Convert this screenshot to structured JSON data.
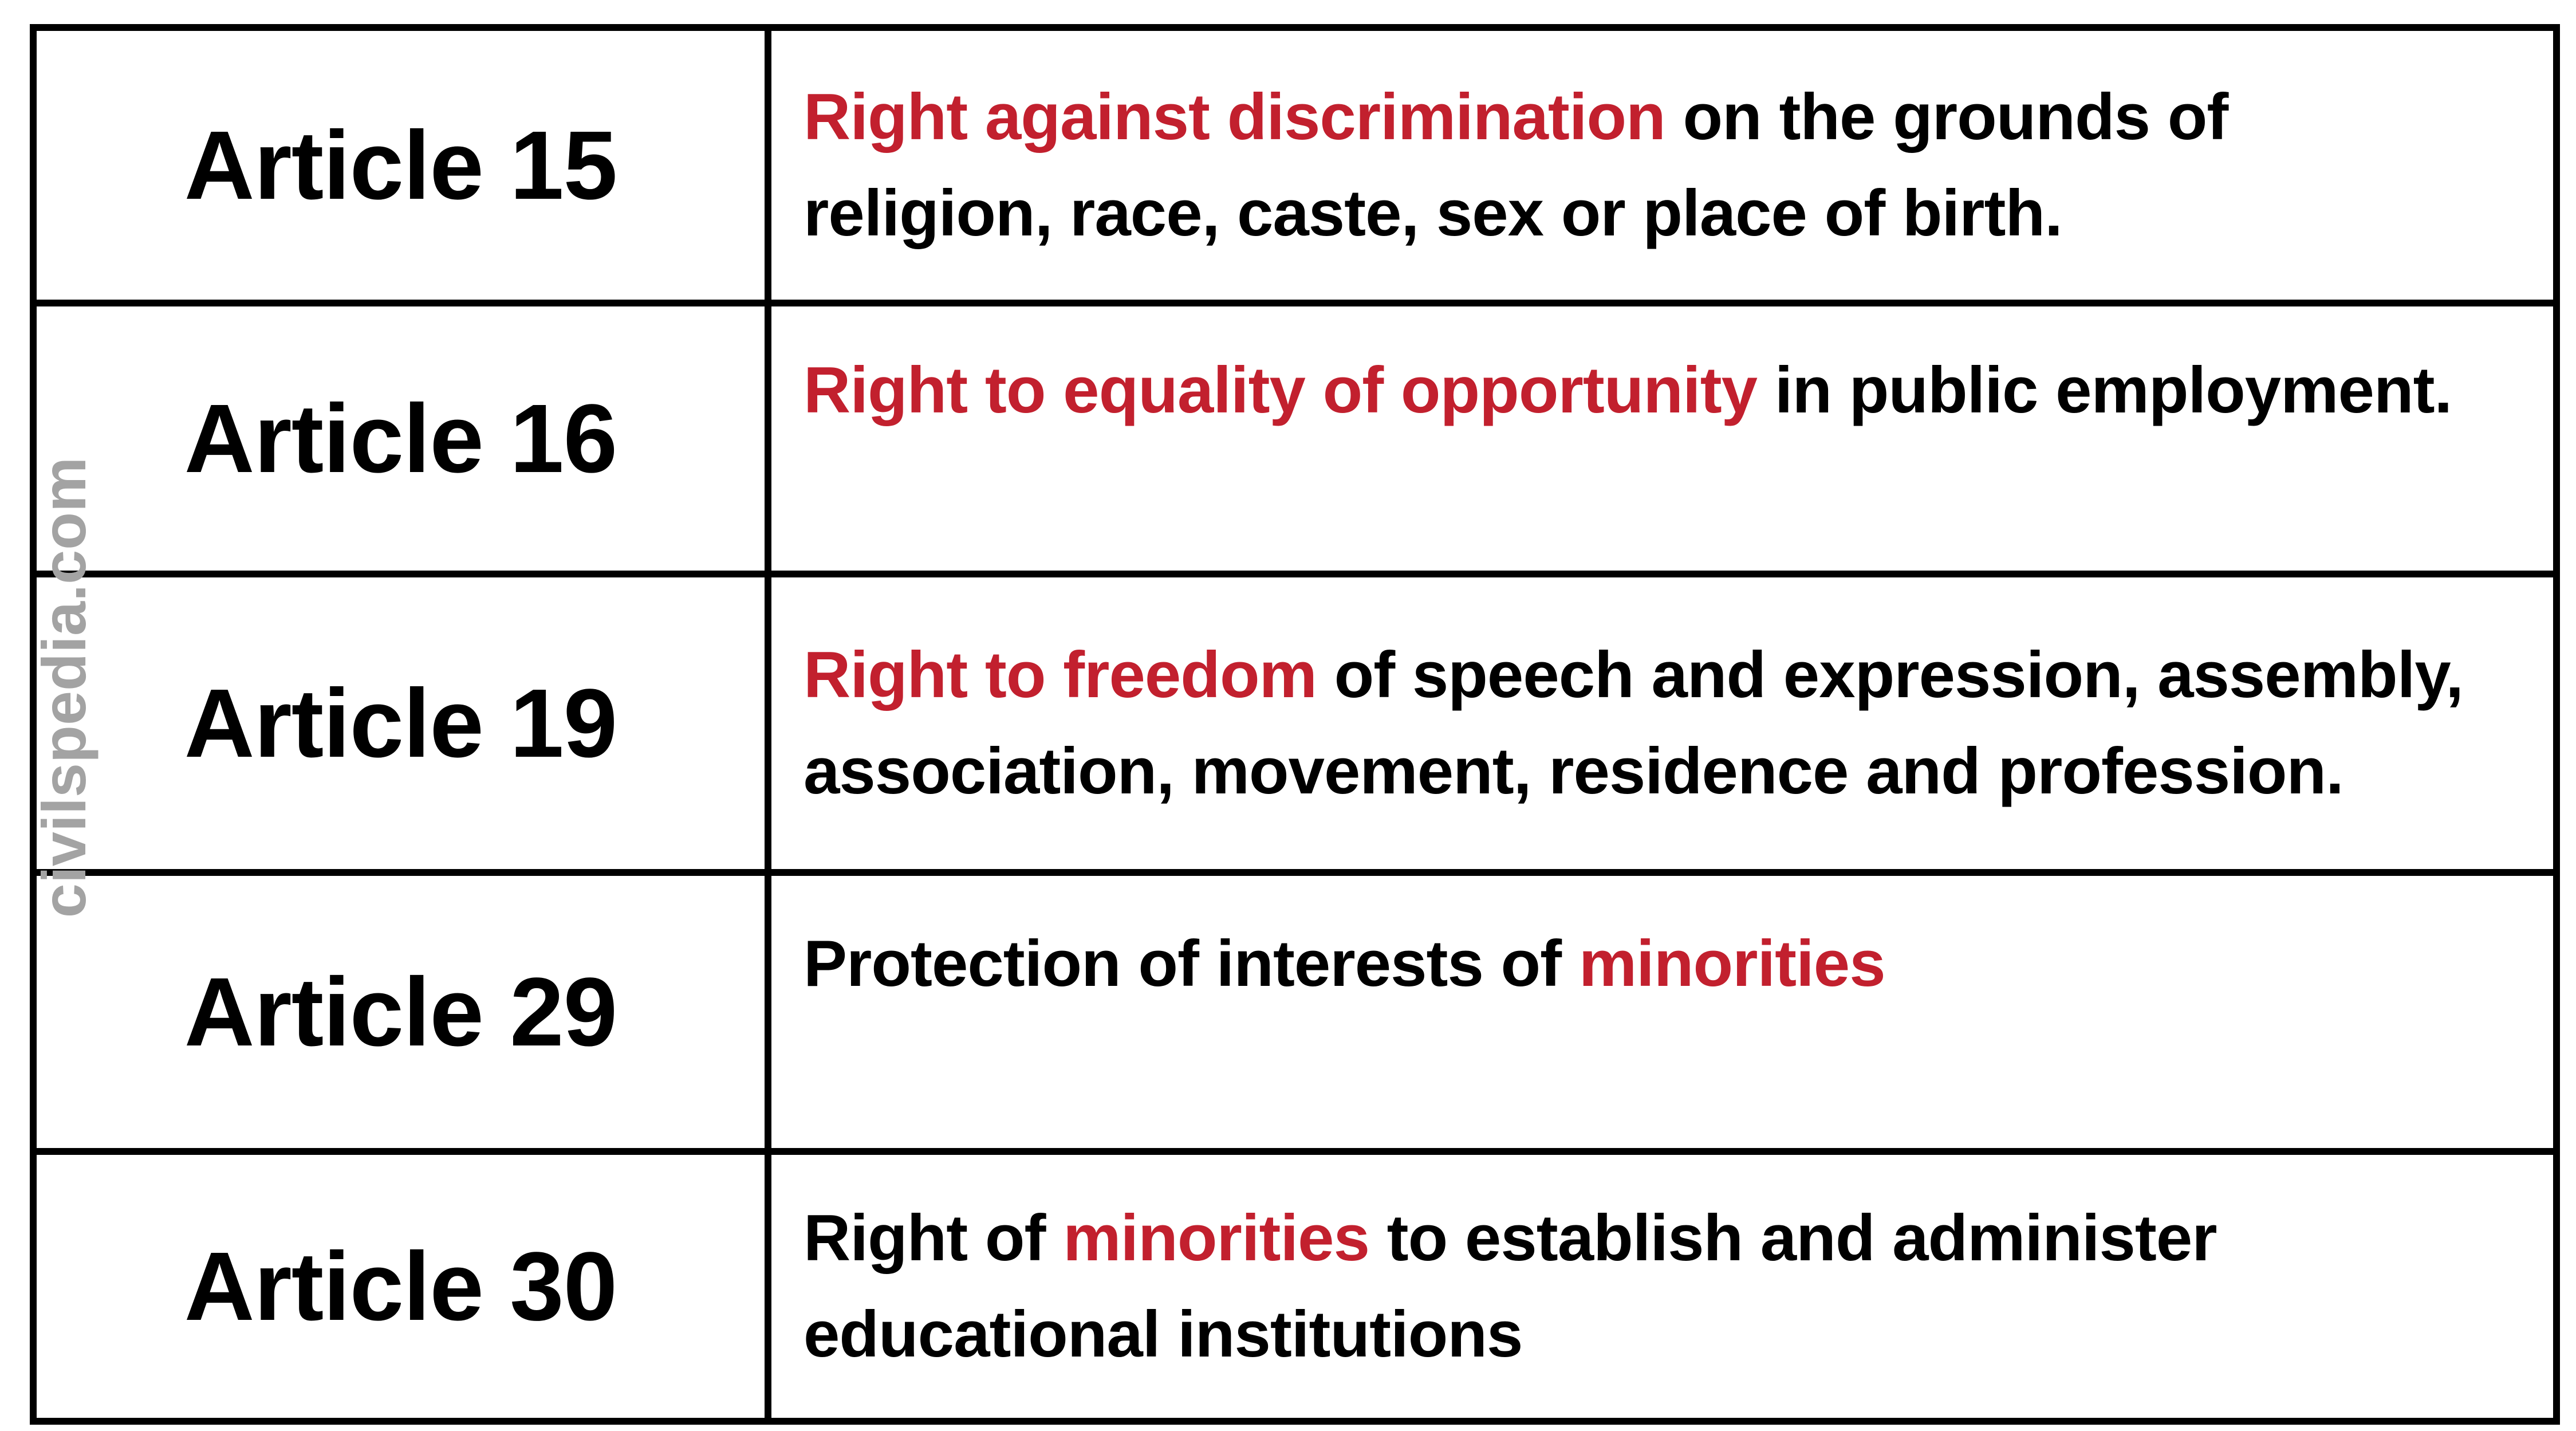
{
  "watermark": "civilspedia.com",
  "colors": {
    "background": "#ffffff",
    "border": "#000000",
    "text": "#000000",
    "highlight": "#c2202e",
    "watermark": "#a3a3a3"
  },
  "rows": [
    {
      "article": "Article 15",
      "lines": [
        [
          {
            "text": "Right against discrimination",
            "highlight": true
          },
          {
            "text": " on the grounds of",
            "highlight": false
          }
        ],
        [
          {
            "text": "religion, race, caste, sex or place of birth.",
            "highlight": false
          }
        ]
      ]
    },
    {
      "article": "Article 16",
      "lines": [
        [
          {
            "text": "Right to equality of opportunity",
            "highlight": true
          },
          {
            "text": " in public employment.",
            "highlight": false
          }
        ]
      ]
    },
    {
      "article": "Article 19",
      "lines": [
        [
          {
            "text": "Right to freedom",
            "highlight": true
          },
          {
            "text": " of speech and expression, assembly,",
            "highlight": false
          }
        ],
        [
          {
            "text": "association, movement, residence and profession.",
            "highlight": false
          }
        ]
      ]
    },
    {
      "article": "Article 29",
      "lines": [
        [
          {
            "text": "Protection of interests of ",
            "highlight": false
          },
          {
            "text": "minorities",
            "highlight": true
          }
        ]
      ]
    },
    {
      "article": "Article 30",
      "lines": [
        [
          {
            "text": "Right of ",
            "highlight": false
          },
          {
            "text": "minorities",
            "highlight": true
          },
          {
            "text": " to establish and administer",
            "highlight": false
          }
        ],
        [
          {
            "text": "educational institutions",
            "highlight": false
          }
        ]
      ]
    }
  ]
}
